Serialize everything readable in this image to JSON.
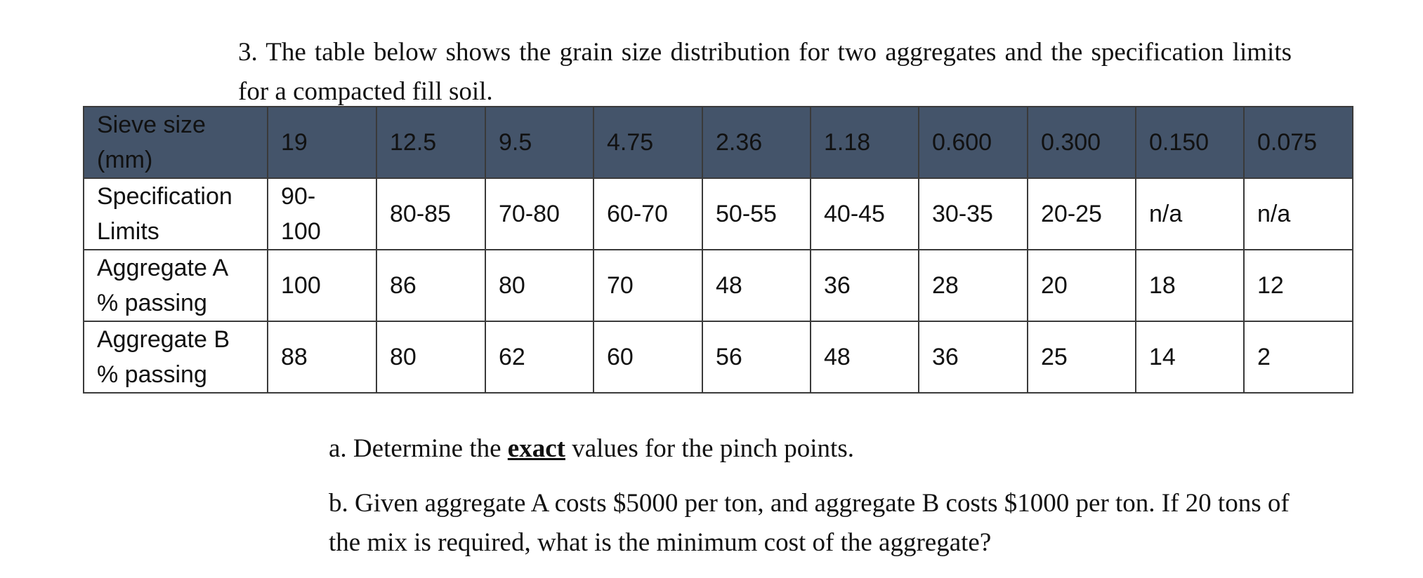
{
  "problem": {
    "text": "3. The table below shows the grain size distribution for two aggregates and the specification limits for a compacted fill soil."
  },
  "table": {
    "header_color": "#44546a",
    "header": {
      "label_line1": "Sieve size",
      "label_line2": "(mm)",
      "sizes": [
        "19",
        "12.5",
        "9.5",
        "4.75",
        "2.36",
        "1.18",
        "0.600",
        "0.300",
        "0.150",
        "0.075"
      ]
    },
    "rows": [
      {
        "label_line1": "Specification",
        "label_line2": "Limits",
        "first_line1": "90-",
        "first_line2": "100",
        "values": [
          "80-85",
          "70-80",
          "60-70",
          "50-55",
          "40-45",
          "30-35",
          "20-25",
          "n/a",
          "n/a"
        ]
      },
      {
        "label_line1": "Aggregate A",
        "label_line2": "% passing",
        "first_line1": "100",
        "first_line2": "",
        "values": [
          "86",
          "80",
          "70",
          "48",
          "36",
          "28",
          "20",
          "18",
          "12"
        ]
      },
      {
        "label_line1": "Aggregate B",
        "label_line2": "% passing",
        "first_line1": "88",
        "first_line2": "",
        "values": [
          "80",
          "62",
          "60",
          "56",
          "48",
          "36",
          "25",
          "14",
          "2"
        ]
      }
    ]
  },
  "questions": {
    "a_before": "a. Determine the ",
    "a_emphasis": "exact",
    "a_after": " values for the pinch points.",
    "b": "b. Given aggregate A costs $5000 per ton, and aggregate B costs $1000 per ton. If 20 tons of the mix is required, what is the minimum cost of the aggregate?"
  }
}
